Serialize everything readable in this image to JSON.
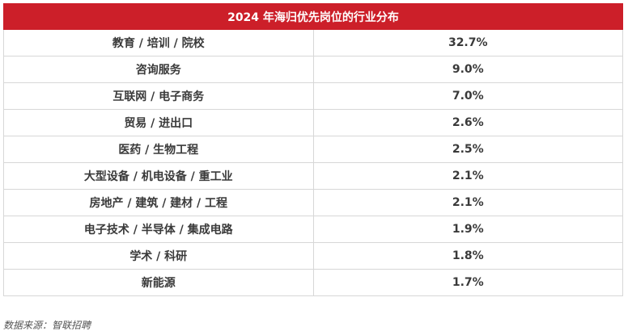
{
  "table": {
    "title": "2024 年海归优先岗位的行业分布",
    "rows": [
      {
        "industry": "教育 / 培训 / 院校",
        "share": "32.7%"
      },
      {
        "industry": "咨询服务",
        "share": "9.0%"
      },
      {
        "industry": "互联网 / 电子商务",
        "share": "7.0%"
      },
      {
        "industry": "贸易 / 进出口",
        "share": "2.6%"
      },
      {
        "industry": "医药 / 生物工程",
        "share": "2.5%"
      },
      {
        "industry": "大型设备 / 机电设备 / 重工业",
        "share": "2.1%"
      },
      {
        "industry": "房地产 / 建筑 / 建材 / 工程",
        "share": "2.1%"
      },
      {
        "industry": "电子技术 / 半导体 / 集成电路",
        "share": "1.9%"
      },
      {
        "industry": "学术 / 科研",
        "share": "1.8%"
      },
      {
        "industry": "新能源",
        "share": "1.7%"
      }
    ]
  },
  "source": "数据来源：智联招聘",
  "colors": {
    "header_background": "#cc1f29",
    "header_text": "#ffffff",
    "cell_text": "#3a3a3a",
    "border": "#d7d7d7"
  }
}
